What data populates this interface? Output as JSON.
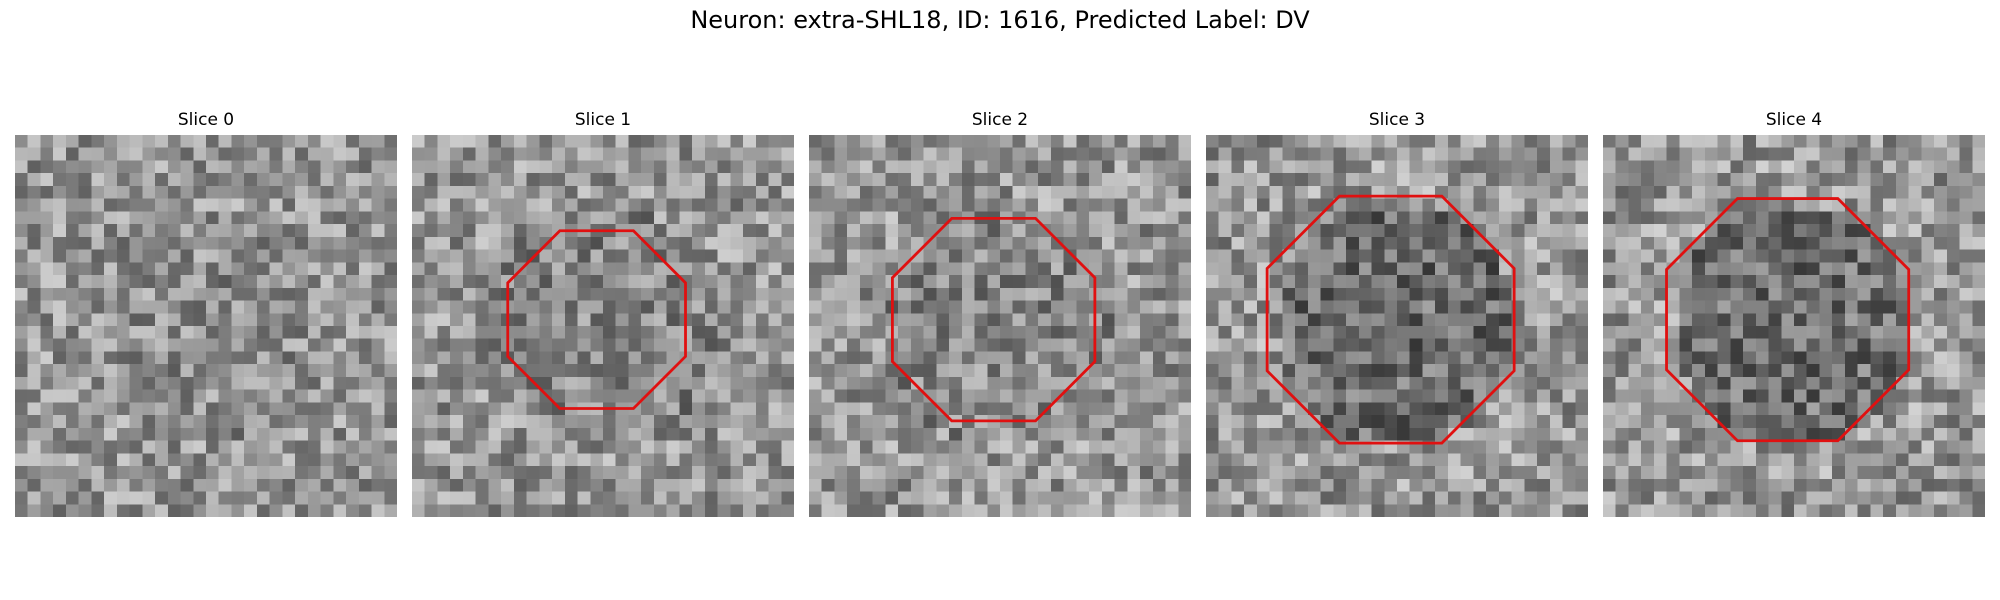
{
  "figure": {
    "title": "Neuron: extra-SHL18, ID: 1616, Predicted Label: DV"
  },
  "panels": [
    {
      "title": "Slice 0",
      "has_contour": false,
      "darkness": 0.05,
      "contour_scale": 0.0
    },
    {
      "title": "Slice 1",
      "has_contour": true,
      "darkness": 0.12,
      "contour_scale": 0.72
    },
    {
      "title": "Slice 2",
      "has_contour": true,
      "darkness": 0.1,
      "contour_scale": 0.82
    },
    {
      "title": "Slice 3",
      "has_contour": true,
      "darkness": 0.3,
      "contour_scale": 1.0
    },
    {
      "title": "Slice 4",
      "has_contour": true,
      "darkness": 0.28,
      "contour_scale": 0.98
    }
  ],
  "colors": {
    "contour": "#e01010"
  }
}
